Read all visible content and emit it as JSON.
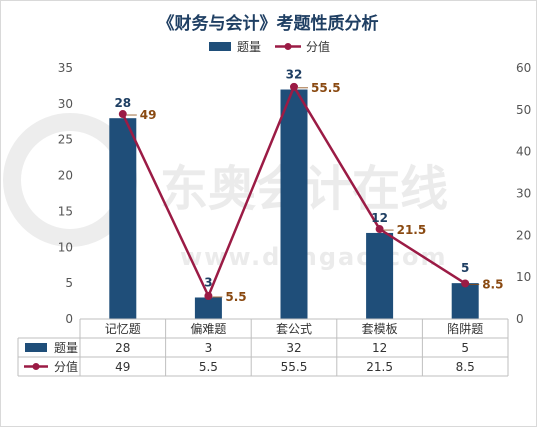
{
  "watermark": {
    "text": "东奥会计在线",
    "url": "www.dongao.com"
  },
  "chart_data": {
    "type": "bar",
    "title": "《财务与会计》考题性质分析",
    "categories": [
      "记忆题",
      "偏难题",
      "套公式",
      "套模板",
      "陷阱题"
    ],
    "series": [
      {
        "name": "题量",
        "kind": "bar",
        "axis": "left",
        "values": [
          28,
          3,
          32,
          12,
          5
        ]
      },
      {
        "name": "分值",
        "kind": "line",
        "axis": "right",
        "values": [
          49,
          5.5,
          55.5,
          21.5,
          8.5
        ]
      }
    ],
    "y_left": {
      "range": [
        0,
        35
      ],
      "ticks": [
        0,
        5,
        10,
        15,
        20,
        25,
        30,
        35
      ]
    },
    "y_right": {
      "range": [
        0,
        60
      ],
      "ticks": [
        0,
        10,
        20,
        30,
        40,
        50,
        60
      ]
    },
    "legend_position": "top-center",
    "data_table": true,
    "grid": false,
    "colors": {
      "bar": "#1f4e79",
      "line": "#9b1b45",
      "table_line": "#bfbfbf"
    }
  }
}
